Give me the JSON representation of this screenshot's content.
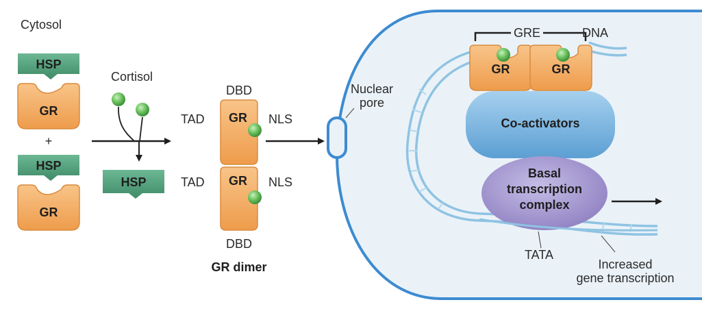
{
  "labels": {
    "cytosol": "Cytosol",
    "cortisol": "Cortisol",
    "hsp": "HSP",
    "gr": "GR",
    "plus": "+",
    "dbd": "DBD",
    "tad": "TAD",
    "nls": "NLS",
    "gr_dimer": "GR dimer",
    "nuclear_pore": "Nuclear\npore",
    "gre": "GRE",
    "dna": "DNA",
    "coactivators": "Co-activators",
    "basal_complex": "Basal\ntranscription\ncomplex",
    "tata": "TATA",
    "increased_transcription": "Increased\ngene transcription"
  },
  "colors": {
    "hsp": "#4f9b77",
    "gr": "#f2a65a",
    "gr_edge": "#d98b3e",
    "cortisol": "#5cb85c",
    "nucleus_fill": "#eaf2f8",
    "nucleus_edge": "#3d8bd0",
    "coactivators": "#76b3de",
    "basal_complex": "#a597cf",
    "dna": "#8fc3e2"
  }
}
